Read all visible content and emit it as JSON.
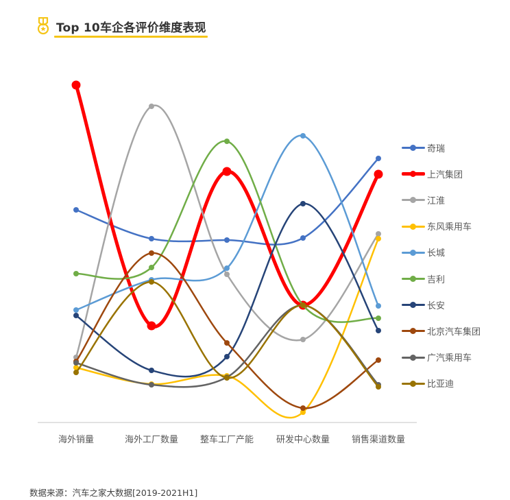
{
  "header": {
    "title": "Top 10车企各评价维度表现",
    "icon": "medal-icon",
    "accent_color": "#f5c518"
  },
  "footer": {
    "source": "数据来源：汽车之家大数据[2019-2021H1]"
  },
  "chart_data": {
    "type": "line",
    "smooth": true,
    "title": "Top 10车企各评价维度表现",
    "xlabel": "",
    "ylabel": "",
    "ylim": [
      0,
      100
    ],
    "y_axis_visible": false,
    "grid": false,
    "legend_position": "right",
    "categories": [
      "海外销量",
      "海外工厂数量",
      "整车工厂产能",
      "研发中心数量",
      "销售渠道数量"
    ],
    "series": [
      {
        "name": "奇瑞",
        "color": "#4472c4",
        "width": 2.5,
        "values": [
          62,
          53.6,
          53.2,
          53.8,
          77
        ]
      },
      {
        "name": "上汽集团",
        "color": "#ff0000",
        "width": 5,
        "values": [
          98.4,
          28.2,
          73.2,
          34.2,
          72.4
        ]
      },
      {
        "name": "江淮",
        "color": "#a5a5a5",
        "width": 2.5,
        "values": [
          19,
          92.2,
          43.2,
          24.2,
          55
        ]
      },
      {
        "name": "东风乘用车",
        "color": "#ffc000",
        "width": 2.5,
        "values": [
          16,
          11.2,
          13.6,
          3,
          53.6
        ]
      },
      {
        "name": "长城",
        "color": "#5b9bd5",
        "width": 2.5,
        "values": [
          32.8,
          41.6,
          45,
          83.6,
          34
        ]
      },
      {
        "name": "吉利",
        "color": "#70ad47",
        "width": 2.5,
        "values": [
          43.4,
          45.2,
          82,
          34.2,
          30.4
        ]
      },
      {
        "name": "长安",
        "color": "#264478",
        "width": 2.5,
        "values": [
          31.2,
          15.2,
          19.2,
          63.8,
          26.8
        ]
      },
      {
        "name": "北京汽车集团",
        "color": "#9e480e",
        "width": 2.5,
        "values": [
          17.8,
          49.4,
          23.2,
          4.2,
          18.2
        ]
      },
      {
        "name": "广汽乘用车",
        "color": "#636363",
        "width": 2.5,
        "values": [
          17.4,
          11,
          13.2,
          34.2,
          11
        ]
      },
      {
        "name": "比亚迪",
        "color": "#997300",
        "width": 2.5,
        "values": [
          14.6,
          41,
          13,
          34.2,
          10.4
        ]
      }
    ]
  },
  "legend": {
    "items": [
      {
        "label": "奇瑞",
        "color": "#4472c4"
      },
      {
        "label": "上汽集团",
        "color": "#ff0000"
      },
      {
        "label": "江淮",
        "color": "#a5a5a5"
      },
      {
        "label": "东风乘用车",
        "color": "#ffc000"
      },
      {
        "label": "长城",
        "color": "#5b9bd5"
      },
      {
        "label": "吉利",
        "color": "#70ad47"
      },
      {
        "label": "长安",
        "color": "#264478"
      },
      {
        "label": "北京汽车集团",
        "color": "#9e480e"
      },
      {
        "label": "广汽乘用车",
        "color": "#636363"
      },
      {
        "label": "比亚迪",
        "color": "#997300"
      }
    ]
  },
  "axis": {
    "baseline_color": "#d9d9d9"
  }
}
